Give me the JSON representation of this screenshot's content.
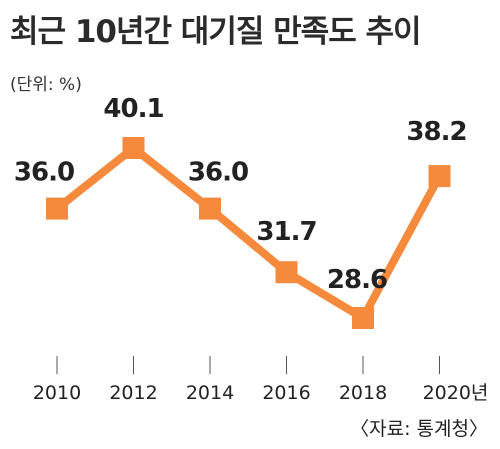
{
  "chart_data": {
    "type": "line",
    "title": "최근 10년간 대기질 만족도 추이",
    "unit_label": "(단위: %)",
    "source": "〈자료: 통계청〉",
    "x_tick_labels": [
      "2010",
      "2012",
      "2014",
      "2016",
      "2018",
      "2020년"
    ],
    "x": [
      2010,
      2012,
      2014,
      2016,
      2018,
      2020
    ],
    "series": [
      {
        "values": [
          36.0,
          40.1,
          36.0,
          31.7,
          28.6,
          38.2
        ],
        "labels": [
          "36.0",
          "40.1",
          "36.0",
          "31.7",
          "28.6",
          "38.2"
        ]
      }
    ],
    "ylim": [
      25,
      42
    ],
    "grid": false,
    "colors": {
      "line": "#f58a3c",
      "marker": "#f58a3c",
      "text": "#222222"
    }
  }
}
